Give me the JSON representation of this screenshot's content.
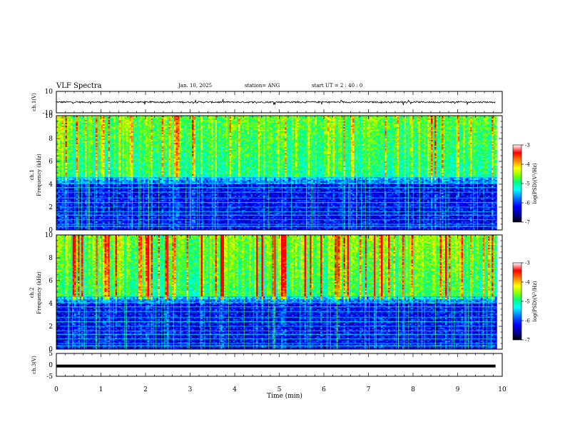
{
  "header": {
    "title": "VLF Spectra",
    "date": "Jan. 10, 2025",
    "station": "station= ANG",
    "start": "start  UT =   2 : 40 : 0"
  },
  "chart_data": [
    {
      "id": "ch1-waveform",
      "type": "line",
      "ylabel": "ch.1(V)",
      "ylim": [
        -10,
        10
      ],
      "ytick_labels": [
        "10",
        "-10"
      ],
      "baseline": 0,
      "amplitude": 1.5
    },
    {
      "id": "ch1-spectrogram",
      "type": "heatmap",
      "ylabel_top": "ch.1",
      "ylabel": "Frequency (kHz)",
      "ylim": [
        0,
        10
      ],
      "ytick_labels": [
        "0",
        "2",
        "4",
        "6",
        "8",
        "10"
      ],
      "colorbar": {
        "label": "log(PSD)(V²/Hz)",
        "range": [
          -7,
          -3
        ],
        "tick_labels": [
          "-3",
          "-4",
          "-5",
          "-6",
          "-7"
        ]
      }
    },
    {
      "id": "ch2-spectrogram",
      "type": "heatmap",
      "ylabel_top": "ch.2",
      "ylabel": "Frequency (kHz)",
      "ylim": [
        0,
        10
      ],
      "ytick_labels": [
        "0",
        "2",
        "4",
        "6",
        "8",
        "10"
      ],
      "colorbar": {
        "label": "log(PSD)(V²/Hz)",
        "range": [
          -7,
          -3
        ],
        "tick_labels": [
          "-3",
          "-4",
          "-5",
          "-6",
          "-7"
        ]
      }
    },
    {
      "id": "ch3-waveform",
      "type": "line",
      "ylabel": "ch.3(V)",
      "ylim": [
        -5,
        5
      ],
      "ytick_labels": [
        "5",
        "0",
        "-5"
      ],
      "baseline": -0.5
    }
  ],
  "xaxis": {
    "label": "Time (min)",
    "range": [
      0,
      10
    ],
    "data_end": 9.85,
    "tick_labels": [
      "0",
      "1",
      "2",
      "3",
      "4",
      "5",
      "6",
      "7",
      "8",
      "9",
      "10"
    ]
  },
  "colors": {
    "colormap": [
      "#000000",
      "#000080",
      "#0000ff",
      "#0080ff",
      "#00ffff",
      "#00ff80",
      "#80ff00",
      "#ffff00",
      "#ff8000",
      "#ff0000",
      "#ffffff"
    ],
    "trace": "#000000"
  }
}
